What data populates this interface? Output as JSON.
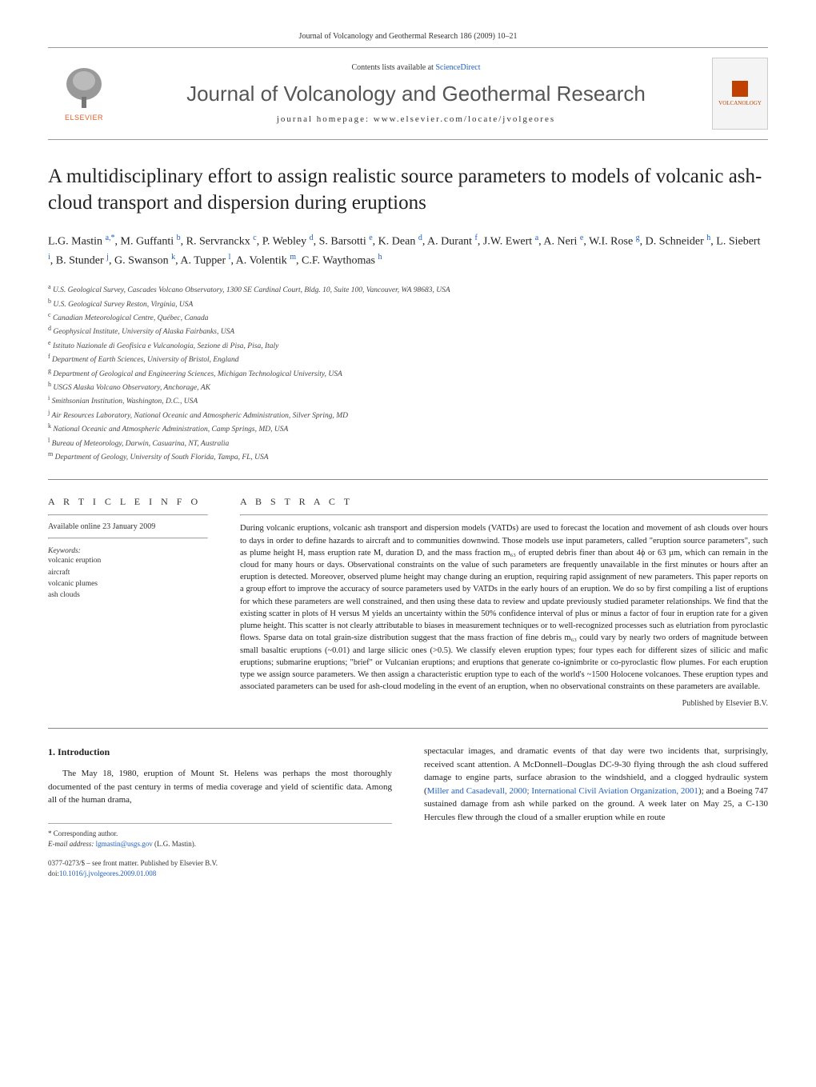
{
  "journal_header": "Journal of Volcanology and Geothermal Research 186 (2009) 10–21",
  "banner": {
    "contents_prefix": "Contents lists available at ",
    "contents_link": "ScienceDirect",
    "journal_name": "Journal of Volcanology and Geothermal Research",
    "homepage": "journal homepage: www.elsevier.com/locate/jvolgeores",
    "elsevier_label": "ELSEVIER",
    "cover_label": "VOLCANOLOGY"
  },
  "title": "A multidisciplinary effort to assign realistic source parameters to models of volcanic ash-cloud transport and dispersion during eruptions",
  "authors_html": "L.G. Mastin <sup>a,*</sup>, M. Guffanti <sup>b</sup>, R. Servranckx <sup>c</sup>, P. Webley <sup>d</sup>, S. Barsotti <sup>e</sup>, K. Dean <sup>d</sup>, A. Durant <sup>f</sup>, J.W. Ewert <sup>a</sup>, A. Neri <sup>e</sup>, W.I. Rose <sup>g</sup>, D. Schneider <sup>h</sup>, L. Siebert <sup>i</sup>, B. Stunder <sup>j</sup>, G. Swanson <sup>k</sup>, A. Tupper <sup>l</sup>, A. Volentik <sup>m</sup>, C.F. Waythomas <sup>h</sup>",
  "affiliations": [
    {
      "sup": "a",
      "text": "U.S. Geological Survey, Cascades Volcano Observatory, 1300 SE Cardinal Court, Bldg. 10, Suite 100, Vancouver, WA 98683, USA"
    },
    {
      "sup": "b",
      "text": "U.S. Geological Survey Reston, Virginia, USA"
    },
    {
      "sup": "c",
      "text": "Canadian Meteorological Centre, Québec, Canada"
    },
    {
      "sup": "d",
      "text": "Geophysical Institute, University of Alaska Fairbanks, USA"
    },
    {
      "sup": "e",
      "text": "Istituto Nazionale di Geofisica e Vulcanologia, Sezione di Pisa, Pisa, Italy"
    },
    {
      "sup": "f",
      "text": "Department of Earth Sciences, University of Bristol, England"
    },
    {
      "sup": "g",
      "text": "Department of Geological and Engineering Sciences, Michigan Technological University, USA"
    },
    {
      "sup": "h",
      "text": "USGS Alaska Volcano Observatory, Anchorage, AK"
    },
    {
      "sup": "i",
      "text": "Smithsonian Institution, Washington, D.C., USA"
    },
    {
      "sup": "j",
      "text": "Air Resources Laboratory, National Oceanic and Atmospheric Administration, Silver Spring, MD"
    },
    {
      "sup": "k",
      "text": "National Oceanic and Atmospheric Administration, Camp Springs, MD, USA"
    },
    {
      "sup": "l",
      "text": "Bureau of Meteorology, Darwin, Casuarina, NT, Australia"
    },
    {
      "sup": "m",
      "text": "Department of Geology, University of South Florida, Tampa, FL, USA"
    }
  ],
  "article_info": {
    "heading": "A R T I C L E   I N F O",
    "available": "Available online 23 January 2009",
    "keywords_label": "Keywords:",
    "keywords": [
      "volcanic eruption",
      "aircraft",
      "volcanic plumes",
      "ash clouds"
    ]
  },
  "abstract": {
    "heading": "A B S T R A C T",
    "text": "During volcanic eruptions, volcanic ash transport and dispersion models (VATDs) are used to forecast the location and movement of ash clouds over hours to days in order to define hazards to aircraft and to communities downwind. Those models use input parameters, called \"eruption source parameters\", such as plume height H, mass eruption rate M, duration D, and the mass fraction m₆₃ of erupted debris finer than about 4ϕ or 63 µm, which can remain in the cloud for many hours or days. Observational constraints on the value of such parameters are frequently unavailable in the first minutes or hours after an eruption is detected. Moreover, observed plume height may change during an eruption, requiring rapid assignment of new parameters. This paper reports on a group effort to improve the accuracy of source parameters used by VATDs in the early hours of an eruption. We do so by first compiling a list of eruptions for which these parameters are well constrained, and then using these data to review and update previously studied parameter relationships. We find that the existing scatter in plots of H versus M yields an uncertainty within the 50% confidence interval of plus or minus a factor of four in eruption rate for a given plume height. This scatter is not clearly attributable to biases in measurement techniques or to well-recognized processes such as elutriation from pyroclastic flows. Sparse data on total grain-size distribution suggest that the mass fraction of fine debris m₆₃ could vary by nearly two orders of magnitude between small basaltic eruptions (~0.01) and large silicic ones (>0.5). We classify eleven eruption types; four types each for different sizes of silicic and mafic eruptions; submarine eruptions; \"brief\" or Vulcanian eruptions; and eruptions that generate co-ignimbrite or co-pyroclastic flow plumes. For each eruption type we assign source parameters. We then assign a characteristic eruption type to each of the world's ~1500 Holocene volcanoes. These eruption types and associated parameters can be used for ash-cloud modeling in the event of an eruption, when no observational constraints on these parameters are available.",
    "published_by": "Published by Elsevier B.V."
  },
  "introduction": {
    "heading": "1. Introduction",
    "para1": "The May 18, 1980, eruption of Mount St. Helens was perhaps the most thoroughly documented of the past century in terms of media coverage and yield of scientific data. Among all of the human drama,",
    "para2_prefix": "spectacular images, and dramatic events of that day were two incidents that, surprisingly, received scant attention. A McDonnell–Douglas DC-9-30 flying through the ash cloud suffered damage to engine parts, surface abrasion to the windshield, and a clogged hydraulic system (",
    "para2_cite": "Miller and Casadevall, 2000; International Civil Aviation Organization, 2001",
    "para2_suffix": "); and a Boeing 747 sustained damage from ash while parked on the ground. A week later on May 25, a C-130 Hercules flew through the cloud of a smaller eruption while en route"
  },
  "footnotes": {
    "corresponding": "* Corresponding author.",
    "email_label": "E-mail address: ",
    "email": "lgmastin@usgs.gov",
    "email_suffix": " (L.G. Mastin).",
    "copyright_line": "0377-0273/$ – see front matter. Published by Elsevier B.V.",
    "doi_prefix": "doi:",
    "doi": "10.1016/j.jvolgeores.2009.01.008"
  },
  "colors": {
    "link": "#2060c0",
    "elsevier_orange": "#e06030",
    "text": "#222222",
    "rule": "#888888"
  }
}
